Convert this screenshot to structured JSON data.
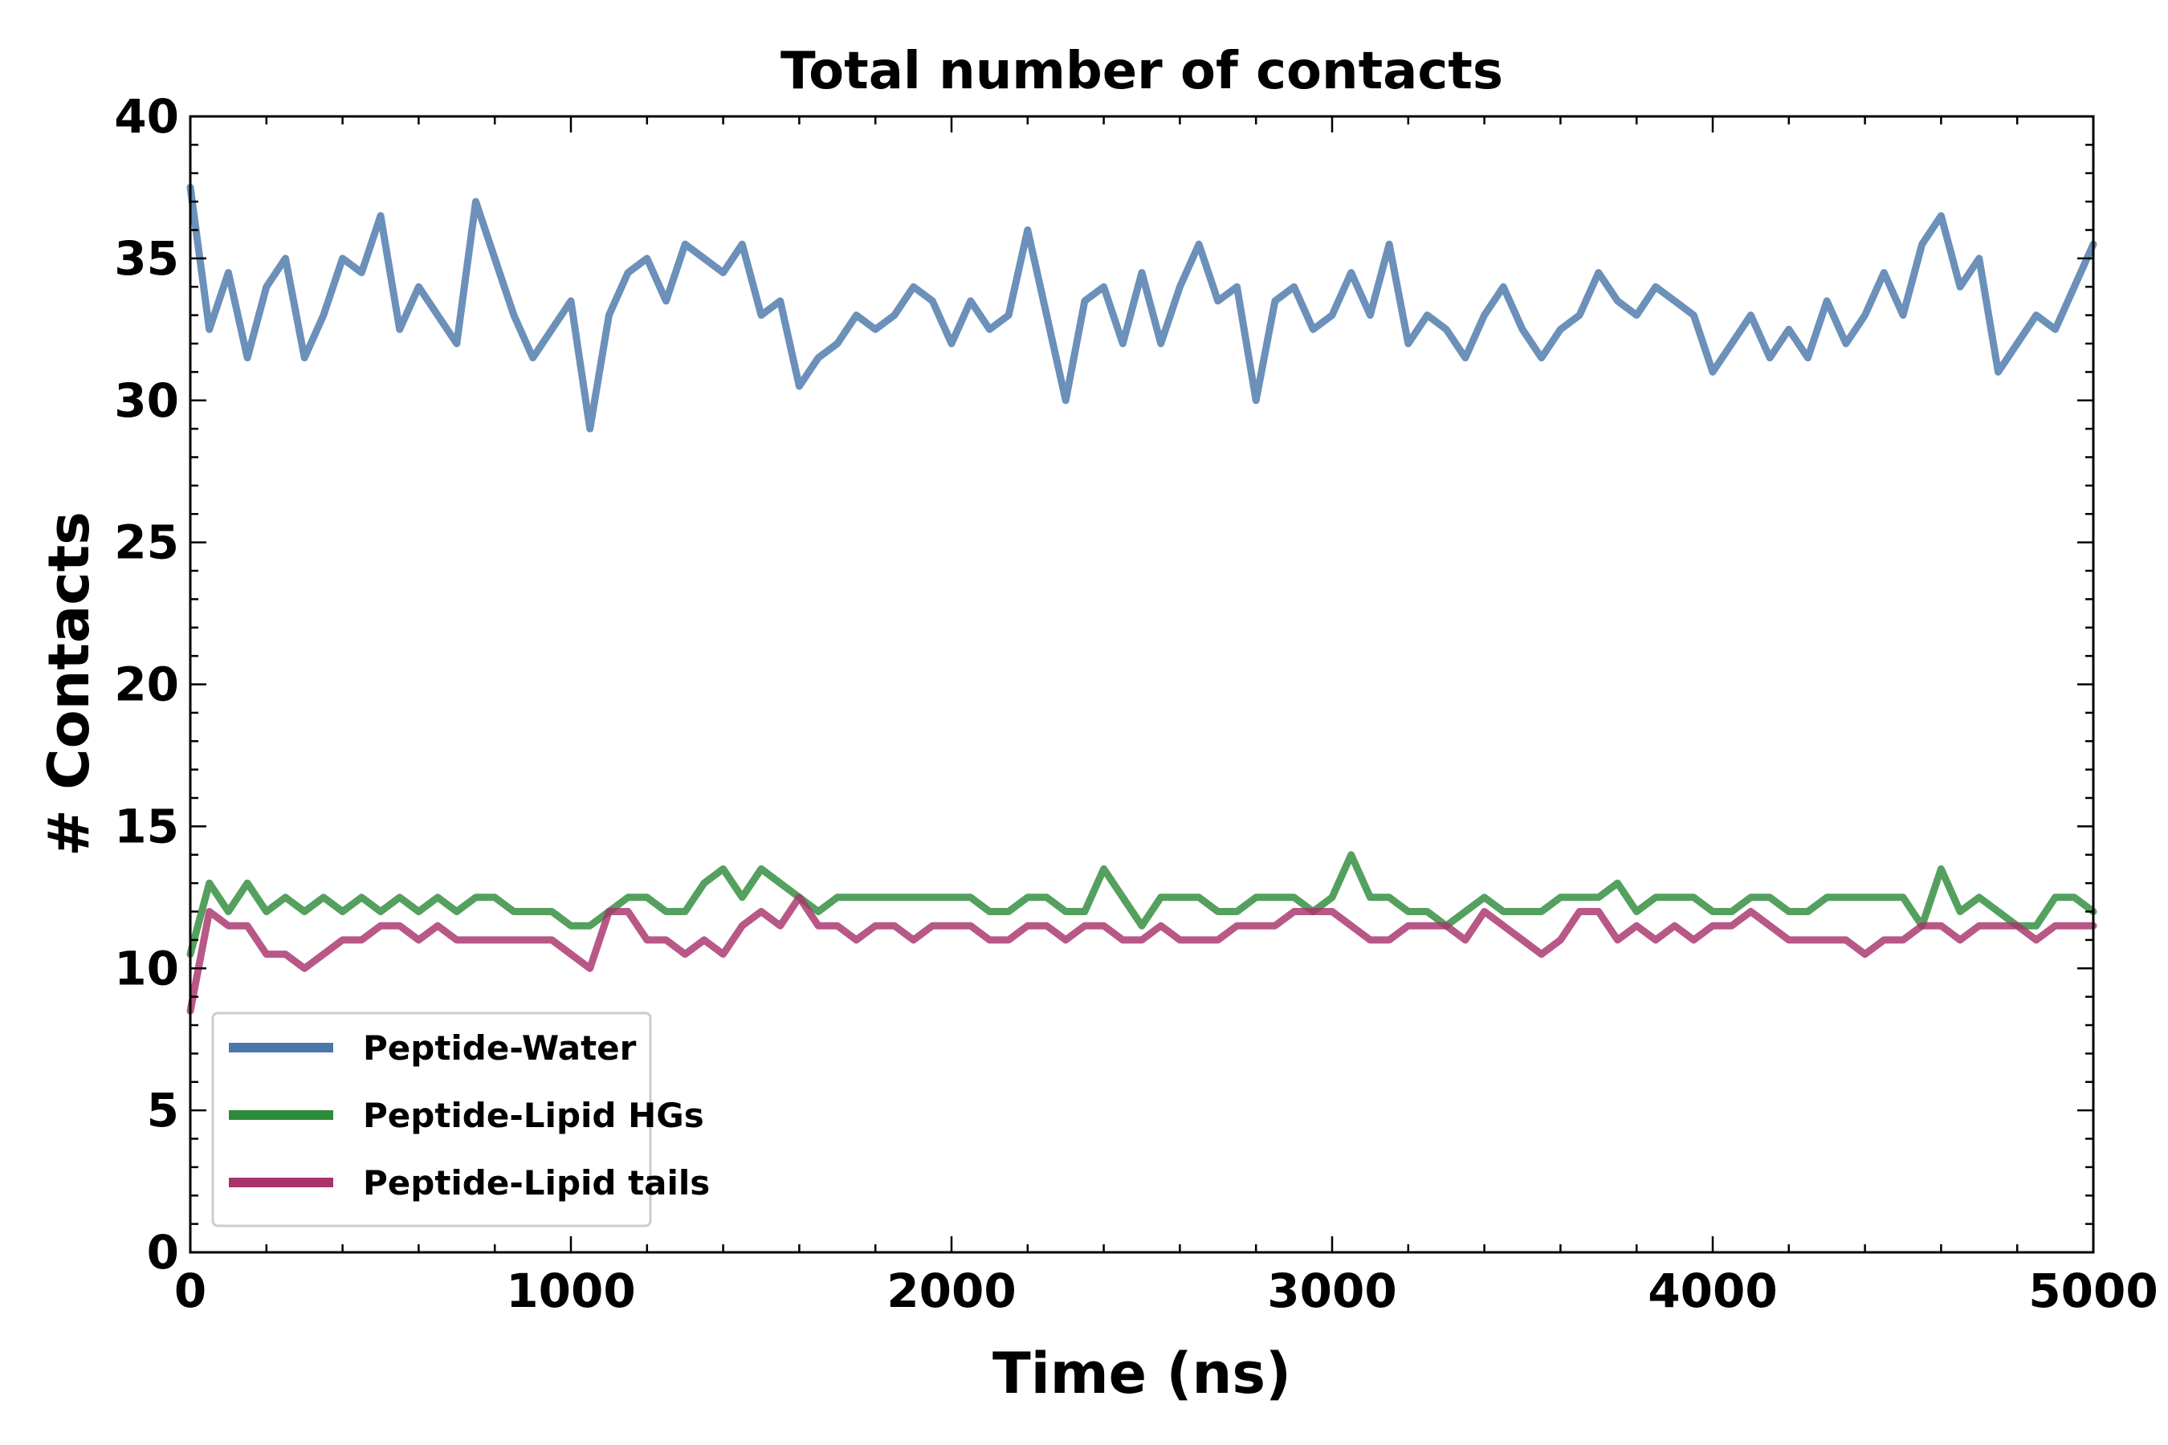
{
  "chart_data": {
    "type": "line",
    "title": "Total number of contacts",
    "xlabel": "Time (ns)",
    "ylabel": "# Contacts",
    "xlim": [
      0,
      5000
    ],
    "ylim": [
      0,
      40
    ],
    "x_ticks": [
      0,
      1000,
      2000,
      3000,
      4000,
      5000
    ],
    "y_ticks": [
      0,
      5,
      10,
      15,
      20,
      25,
      30,
      35,
      40
    ],
    "x_tick_labels": [
      "0",
      "1000",
      "2000",
      "3000",
      "4000",
      "5000"
    ],
    "y_tick_labels": [
      "0",
      "5",
      "10",
      "15",
      "20",
      "25",
      "30",
      "35",
      "40"
    ],
    "grid": false,
    "legend_position": "lower-left",
    "x": [
      0,
      50,
      100,
      150,
      200,
      250,
      300,
      350,
      400,
      450,
      500,
      550,
      600,
      650,
      700,
      750,
      800,
      850,
      900,
      950,
      1000,
      1050,
      1100,
      1150,
      1200,
      1250,
      1300,
      1350,
      1400,
      1450,
      1500,
      1550,
      1600,
      1650,
      1700,
      1750,
      1800,
      1850,
      1900,
      1950,
      2000,
      2050,
      2100,
      2150,
      2200,
      2250,
      2300,
      2350,
      2400,
      2450,
      2500,
      2550,
      2600,
      2650,
      2700,
      2750,
      2800,
      2850,
      2900,
      2950,
      3000,
      3050,
      3100,
      3150,
      3200,
      3250,
      3300,
      3350,
      3400,
      3450,
      3500,
      3550,
      3600,
      3650,
      3700,
      3750,
      3800,
      3850,
      3900,
      3950,
      4000,
      4050,
      4100,
      4150,
      4200,
      4250,
      4300,
      4350,
      4400,
      4450,
      4500,
      4550,
      4600,
      4650,
      4700,
      4750,
      4800,
      4850,
      4900,
      4950,
      5000
    ],
    "series": [
      {
        "name": "Peptide-Water",
        "color": "#4a78aa",
        "values": [
          37.5,
          32.5,
          34.5,
          31.5,
          34.0,
          35.0,
          31.5,
          33.0,
          35.0,
          34.5,
          36.5,
          32.5,
          34.0,
          33.0,
          32.0,
          37.0,
          35.0,
          33.0,
          31.5,
          32.5,
          33.5,
          29.0,
          33.0,
          34.5,
          35.0,
          33.5,
          35.5,
          35.0,
          34.5,
          35.5,
          33.0,
          33.5,
          30.5,
          31.5,
          32.0,
          33.0,
          32.5,
          33.0,
          34.0,
          33.5,
          32.0,
          33.5,
          32.5,
          33.0,
          36.0,
          33.0,
          30.0,
          33.5,
          34.0,
          32.0,
          34.5,
          32.0,
          34.0,
          35.5,
          33.5,
          34.0,
          30.0,
          33.5,
          34.0,
          32.5,
          33.0,
          34.5,
          33.0,
          35.5,
          32.0,
          33.0,
          32.5,
          31.5,
          33.0,
          34.0,
          32.5,
          31.5,
          32.5,
          33.0,
          34.5,
          33.5,
          33.0,
          34.0,
          33.5,
          33.0,
          31.0,
          32.0,
          33.0,
          31.5,
          32.5,
          31.5,
          33.5,
          32.0,
          33.0,
          34.5,
          33.0,
          35.5,
          36.5,
          34.0,
          35.0,
          31.0,
          32.0,
          33.0,
          32.5,
          34.0,
          35.5
        ]
      },
      {
        "name": "Peptide-Lipid HGs",
        "color": "#2e8b3a",
        "values": [
          10.5,
          13.0,
          12.0,
          13.0,
          12.0,
          12.5,
          12.0,
          12.5,
          12.0,
          12.5,
          12.0,
          12.5,
          12.0,
          12.5,
          12.0,
          12.5,
          12.5,
          12.0,
          12.0,
          12.0,
          11.5,
          11.5,
          12.0,
          12.5,
          12.5,
          12.0,
          12.0,
          13.0,
          13.5,
          12.5,
          13.5,
          13.0,
          12.5,
          12.0,
          12.5,
          12.5,
          12.5,
          12.5,
          12.5,
          12.5,
          12.5,
          12.5,
          12.0,
          12.0,
          12.5,
          12.5,
          12.0,
          12.0,
          13.5,
          12.5,
          11.5,
          12.5,
          12.5,
          12.5,
          12.0,
          12.0,
          12.5,
          12.5,
          12.5,
          12.0,
          12.5,
          14.0,
          12.5,
          12.5,
          12.0,
          12.0,
          11.5,
          12.0,
          12.5,
          12.0,
          12.0,
          12.0,
          12.5,
          12.5,
          12.5,
          13.0,
          12.0,
          12.5,
          12.5,
          12.5,
          12.0,
          12.0,
          12.5,
          12.5,
          12.0,
          12.0,
          12.5,
          12.5,
          12.5,
          12.5,
          12.5,
          11.5,
          13.5,
          12.0,
          12.5,
          12.0,
          11.5,
          11.5,
          12.5,
          12.5,
          12.0
        ]
      },
      {
        "name": "Peptide-Lipid tails",
        "color": "#a8336b",
        "values": [
          8.5,
          12.0,
          11.5,
          11.5,
          10.5,
          10.5,
          10.0,
          10.5,
          11.0,
          11.0,
          11.5,
          11.5,
          11.0,
          11.5,
          11.0,
          11.0,
          11.0,
          11.0,
          11.0,
          11.0,
          10.5,
          10.0,
          12.0,
          12.0,
          11.0,
          11.0,
          10.5,
          11.0,
          10.5,
          11.5,
          12.0,
          11.5,
          12.5,
          11.5,
          11.5,
          11.0,
          11.5,
          11.5,
          11.0,
          11.5,
          11.5,
          11.5,
          11.0,
          11.0,
          11.5,
          11.5,
          11.0,
          11.5,
          11.5,
          11.0,
          11.0,
          11.5,
          11.0,
          11.0,
          11.0,
          11.5,
          11.5,
          11.5,
          12.0,
          12.0,
          12.0,
          11.5,
          11.0,
          11.0,
          11.5,
          11.5,
          11.5,
          11.0,
          12.0,
          11.5,
          11.0,
          10.5,
          11.0,
          12.0,
          12.0,
          11.0,
          11.5,
          11.0,
          11.5,
          11.0,
          11.5,
          11.5,
          12.0,
          11.5,
          11.0,
          11.0,
          11.0,
          11.0,
          10.5,
          11.0,
          11.0,
          11.5,
          11.5,
          11.0,
          11.5,
          11.5,
          11.5,
          11.0,
          11.5,
          11.5,
          11.5
        ]
      }
    ]
  }
}
